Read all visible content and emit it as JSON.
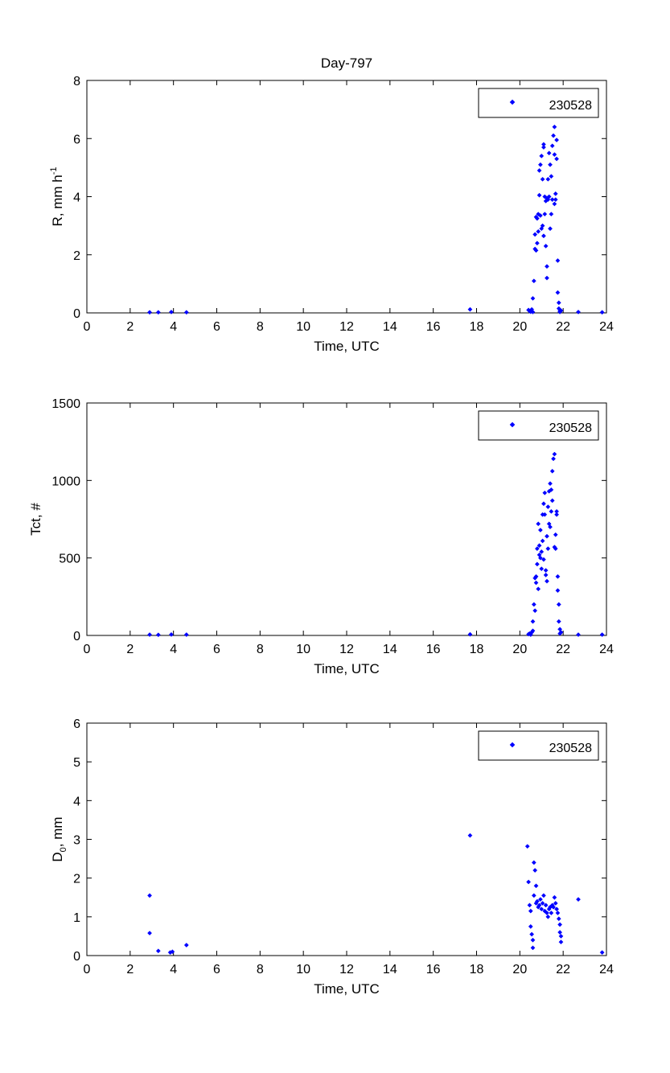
{
  "chart_data": [
    {
      "type": "scatter",
      "title": "Day-797",
      "xlabel": "Time, UTC",
      "ylabel": "R, mm h",
      "ylabel_superscript": "-1",
      "xlim": [
        0,
        24
      ],
      "ylim": [
        0,
        8
      ],
      "xticks": [
        0,
        2,
        4,
        6,
        8,
        10,
        12,
        14,
        16,
        18,
        20,
        22,
        24
      ],
      "yticks": [
        0,
        2,
        4,
        6,
        8
      ],
      "grid": false,
      "legend_position": "top-right",
      "series": [
        {
          "name": "230528",
          "color": "#0000ff",
          "marker": "diamond",
          "points": [
            [
              2.9,
              0.02
            ],
            [
              3.3,
              0.02
            ],
            [
              3.9,
              0.03
            ],
            [
              4.6,
              0.02
            ],
            [
              17.7,
              0.12
            ],
            [
              20.4,
              0.1
            ],
            [
              20.45,
              0.06
            ],
            [
              20.5,
              0.04
            ],
            [
              20.55,
              0.12
            ],
            [
              20.6,
              0.03
            ],
            [
              20.6,
              0.5
            ],
            [
              20.65,
              1.1
            ],
            [
              20.7,
              2.2
            ],
            [
              20.7,
              2.7
            ],
            [
              20.75,
              2.15
            ],
            [
              20.75,
              3.3
            ],
            [
              20.8,
              2.4
            ],
            [
              20.8,
              3.25
            ],
            [
              20.85,
              2.8
            ],
            [
              20.85,
              3.4
            ],
            [
              20.9,
              4.05
            ],
            [
              20.9,
              4.9
            ],
            [
              20.95,
              3.35
            ],
            [
              20.95,
              5.1
            ],
            [
              21.0,
              2.9
            ],
            [
              21.0,
              5.4
            ],
            [
              21.05,
              3.0
            ],
            [
              21.05,
              4.6
            ],
            [
              21.1,
              2.65
            ],
            [
              21.1,
              5.7
            ],
            [
              21.1,
              5.8
            ],
            [
              21.15,
              3.4
            ],
            [
              21.15,
              4.0
            ],
            [
              21.2,
              2.3
            ],
            [
              21.2,
              3.85
            ],
            [
              21.25,
              1.6
            ],
            [
              21.25,
              1.2
            ],
            [
              21.25,
              3.95
            ],
            [
              21.3,
              4.6
            ],
            [
              21.3,
              3.9
            ],
            [
              21.35,
              5.5
            ],
            [
              21.35,
              4.0
            ],
            [
              21.4,
              2.9
            ],
            [
              21.4,
              5.1
            ],
            [
              21.45,
              4.7
            ],
            [
              21.45,
              3.4
            ],
            [
              21.5,
              5.75
            ],
            [
              21.5,
              3.9
            ],
            [
              21.55,
              6.1
            ],
            [
              21.6,
              6.4
            ],
            [
              21.6,
              5.45
            ],
            [
              21.6,
              3.75
            ],
            [
              21.65,
              4.1
            ],
            [
              21.65,
              3.9
            ],
            [
              21.7,
              5.95
            ],
            [
              21.7,
              5.3
            ],
            [
              21.75,
              1.8
            ],
            [
              21.75,
              0.7
            ],
            [
              21.8,
              0.35
            ],
            [
              21.8,
              0.15
            ],
            [
              21.85,
              0.06
            ],
            [
              21.85,
              0.03
            ],
            [
              21.9,
              0.08
            ],
            [
              22.7,
              0.03
            ],
            [
              23.8,
              0.02
            ]
          ]
        }
      ]
    },
    {
      "type": "scatter",
      "title": "",
      "xlabel": "Time, UTC",
      "ylabel": "Tct, #",
      "xlim": [
        0,
        24
      ],
      "ylim": [
        0,
        1500
      ],
      "xticks": [
        0,
        2,
        4,
        6,
        8,
        10,
        12,
        14,
        16,
        18,
        20,
        22,
        24
      ],
      "yticks": [
        0,
        500,
        1000,
        1500
      ],
      "grid": false,
      "legend_position": "top-right",
      "series": [
        {
          "name": "230528",
          "color": "#0000ff",
          "marker": "diamond",
          "points": [
            [
              2.9,
              5
            ],
            [
              3.3,
              4
            ],
            [
              3.9,
              6
            ],
            [
              4.6,
              5
            ],
            [
              17.7,
              7
            ],
            [
              20.4,
              8
            ],
            [
              20.45,
              12
            ],
            [
              20.5,
              5
            ],
            [
              20.55,
              20
            ],
            [
              20.6,
              30
            ],
            [
              20.6,
              90
            ],
            [
              20.65,
              200
            ],
            [
              20.7,
              370
            ],
            [
              20.7,
              160
            ],
            [
              20.75,
              340
            ],
            [
              20.75,
              380
            ],
            [
              20.8,
              460
            ],
            [
              20.8,
              560
            ],
            [
              20.85,
              300
            ],
            [
              20.85,
              720
            ],
            [
              20.9,
              520
            ],
            [
              20.9,
              580
            ],
            [
              20.95,
              500
            ],
            [
              20.95,
              680
            ],
            [
              21.0,
              430
            ],
            [
              21.0,
              540
            ],
            [
              21.05,
              610
            ],
            [
              21.05,
              780
            ],
            [
              21.1,
              490
            ],
            [
              21.1,
              850
            ],
            [
              21.15,
              780
            ],
            [
              21.15,
              920
            ],
            [
              21.2,
              390
            ],
            [
              21.2,
              420
            ],
            [
              21.25,
              350
            ],
            [
              21.25,
              640
            ],
            [
              21.3,
              560
            ],
            [
              21.3,
              830
            ],
            [
              21.35,
              930
            ],
            [
              21.35,
              720
            ],
            [
              21.4,
              980
            ],
            [
              21.4,
              700
            ],
            [
              21.45,
              800
            ],
            [
              21.45,
              940
            ],
            [
              21.5,
              1060
            ],
            [
              21.5,
              870
            ],
            [
              21.55,
              1140
            ],
            [
              21.6,
              1170
            ],
            [
              21.6,
              570
            ],
            [
              21.65,
              560
            ],
            [
              21.65,
              650
            ],
            [
              21.7,
              780
            ],
            [
              21.7,
              800
            ],
            [
              21.75,
              380
            ],
            [
              21.75,
              290
            ],
            [
              21.8,
              200
            ],
            [
              21.8,
              90
            ],
            [
              21.85,
              40
            ],
            [
              21.85,
              12
            ],
            [
              21.9,
              20
            ],
            [
              22.7,
              5
            ],
            [
              23.8,
              5
            ]
          ]
        }
      ]
    },
    {
      "type": "scatter",
      "title": "",
      "xlabel": "Time, UTC",
      "ylabel": "D",
      "ylabel_subscript": "0",
      "ylabel_suffix": ", mm",
      "xlim": [
        0,
        24
      ],
      "ylim": [
        0,
        6
      ],
      "xticks": [
        0,
        2,
        4,
        6,
        8,
        10,
        12,
        14,
        16,
        18,
        20,
        22,
        24
      ],
      "yticks": [
        0,
        1,
        2,
        3,
        4,
        5,
        6
      ],
      "grid": false,
      "legend_position": "top-right",
      "series": [
        {
          "name": "230528",
          "color": "#0000ff",
          "marker": "diamond",
          "points": [
            [
              2.9,
              1.55
            ],
            [
              2.9,
              0.58
            ],
            [
              3.3,
              0.12
            ],
            [
              3.85,
              0.08
            ],
            [
              3.95,
              0.1
            ],
            [
              4.6,
              0.27
            ],
            [
              17.7,
              3.1
            ],
            [
              20.35,
              2.82
            ],
            [
              20.4,
              1.9
            ],
            [
              20.45,
              1.3
            ],
            [
              20.5,
              1.15
            ],
            [
              20.5,
              0.75
            ],
            [
              20.55,
              0.55
            ],
            [
              20.6,
              0.4
            ],
            [
              20.6,
              0.2
            ],
            [
              20.65,
              2.4
            ],
            [
              20.65,
              1.55
            ],
            [
              20.7,
              2.2
            ],
            [
              20.75,
              1.8
            ],
            [
              20.75,
              1.35
            ],
            [
              20.8,
              1.4
            ],
            [
              20.85,
              1.25
            ],
            [
              20.9,
              1.3
            ],
            [
              20.95,
              1.45
            ],
            [
              21.0,
              1.2
            ],
            [
              21.05,
              1.35
            ],
            [
              21.1,
              1.55
            ],
            [
              21.15,
              1.15
            ],
            [
              21.2,
              1.3
            ],
            [
              21.25,
              1.1
            ],
            [
              21.3,
              1.0
            ],
            [
              21.35,
              1.2
            ],
            [
              21.4,
              1.25
            ],
            [
              21.45,
              1.1
            ],
            [
              21.5,
              1.3
            ],
            [
              21.55,
              1.25
            ],
            [
              21.6,
              1.5
            ],
            [
              21.65,
              1.35
            ],
            [
              21.7,
              1.2
            ],
            [
              21.75,
              1.1
            ],
            [
              21.8,
              0.95
            ],
            [
              21.85,
              0.8
            ],
            [
              21.85,
              0.6
            ],
            [
              21.9,
              0.5
            ],
            [
              21.9,
              0.35
            ],
            [
              22.7,
              1.45
            ],
            [
              23.8,
              0.08
            ]
          ]
        }
      ]
    }
  ]
}
